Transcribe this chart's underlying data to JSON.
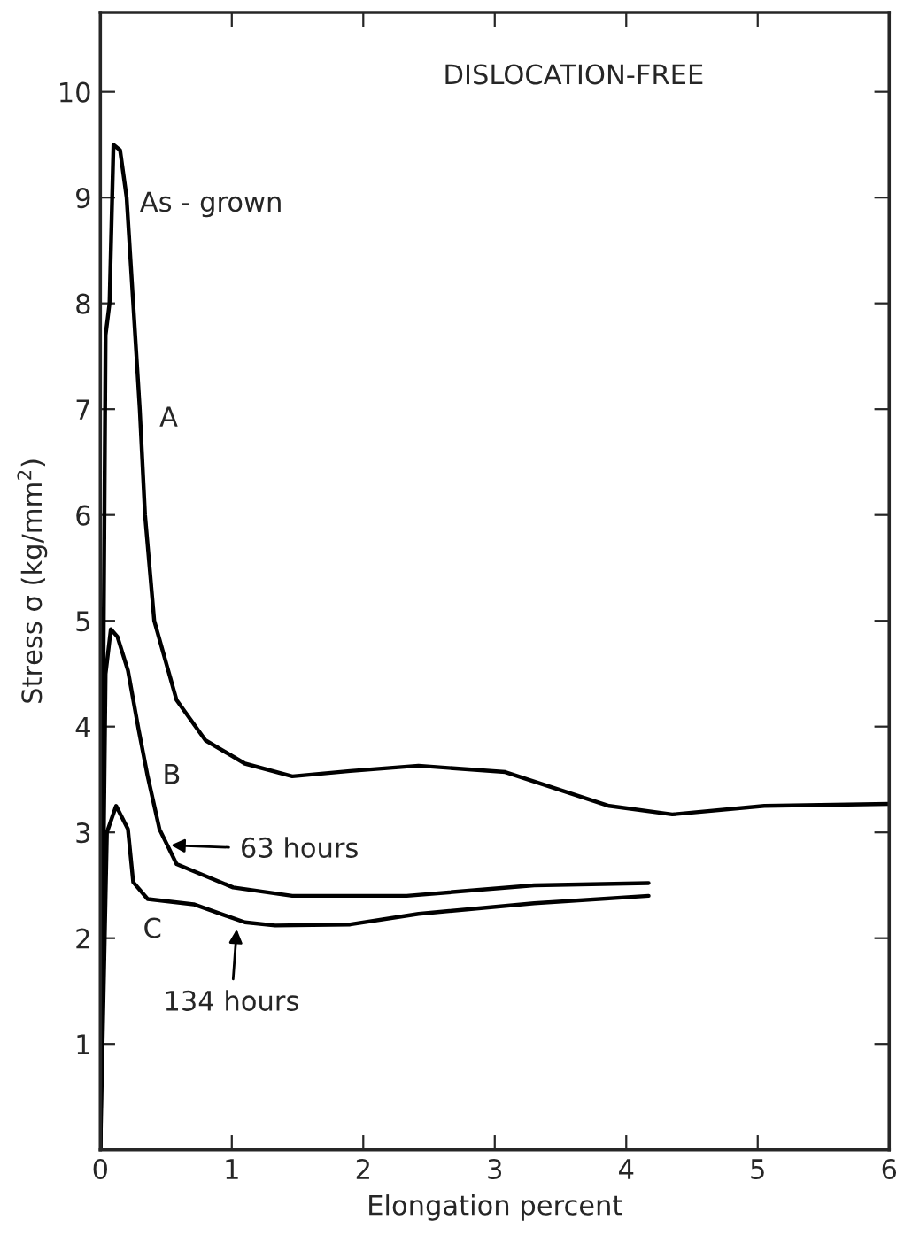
{
  "chart_data": {
    "type": "line",
    "xlabel": "Elongation percent",
    "ylabel": "Stress σ (kg/mm$^{2}$)",
    "xlim": [
      0,
      6
    ],
    "ylim": [
      0,
      10.75
    ],
    "xticks": [
      0,
      1,
      2,
      3,
      4,
      5,
      6
    ],
    "yticks": [
      1,
      2,
      3,
      4,
      5,
      6,
      7,
      8,
      9,
      10
    ],
    "grid": false,
    "marker": "none",
    "line_style": "solid",
    "series": [
      {
        "color": "#000000",
        "x": [
          0,
          0.04,
          0.07,
          0.1,
          0.15,
          0.2,
          0.3,
          0.34,
          0.41,
          0.58,
          0.8,
          1.1,
          1.46,
          1.9,
          2.42,
          3.08,
          3.87,
          4.35,
          5.05,
          6.0
        ],
        "values": [
          0,
          7.7,
          8.0,
          9.5,
          9.45,
          9.0,
          7.0,
          6.0,
          5.0,
          4.25,
          3.87,
          3.65,
          3.53,
          3.58,
          3.63,
          3.57,
          3.25,
          3.17,
          3.25,
          3.27
        ]
      },
      {
        "color": "#000000",
        "x": [
          0,
          0.04,
          0.08,
          0.13,
          0.21,
          0.29,
          0.36,
          0.45,
          0.58,
          1.01,
          1.46,
          2.33,
          3.3,
          4.17
        ],
        "values": [
          0,
          4.5,
          4.92,
          4.85,
          4.53,
          3.98,
          3.53,
          3.03,
          2.7,
          2.48,
          2.4,
          2.4,
          2.5,
          2.52
        ]
      },
      {
        "color": "#000000",
        "x": [
          0,
          0.05,
          0.12,
          0.21,
          0.25,
          0.36,
          0.71,
          1.1,
          1.33,
          1.9,
          2.42,
          3.3,
          4.17
        ],
        "values": [
          0,
          3.0,
          3.25,
          3.03,
          2.53,
          2.37,
          2.32,
          2.15,
          2.12,
          2.13,
          2.23,
          2.33,
          2.4
        ]
      }
    ],
    "annotations": [
      "DISLOCATION-FREE",
      {
        "text": "As - grown",
        "x": 0.15,
        "y": 9.45
      },
      {
        "text": "A",
        "x": 0.3,
        "y": 7.0
      },
      {
        "text": "B",
        "x": 0.36,
        "y": 3.53
      },
      {
        "text": "C",
        "x": 0.25,
        "y": 2.4
      },
      {
        "text": "63 hours",
        "x": 0.5,
        "y": 2.88
      },
      {
        "text": "134 hours",
        "x": 1.04,
        "y": 2.13
      }
    ]
  }
}
